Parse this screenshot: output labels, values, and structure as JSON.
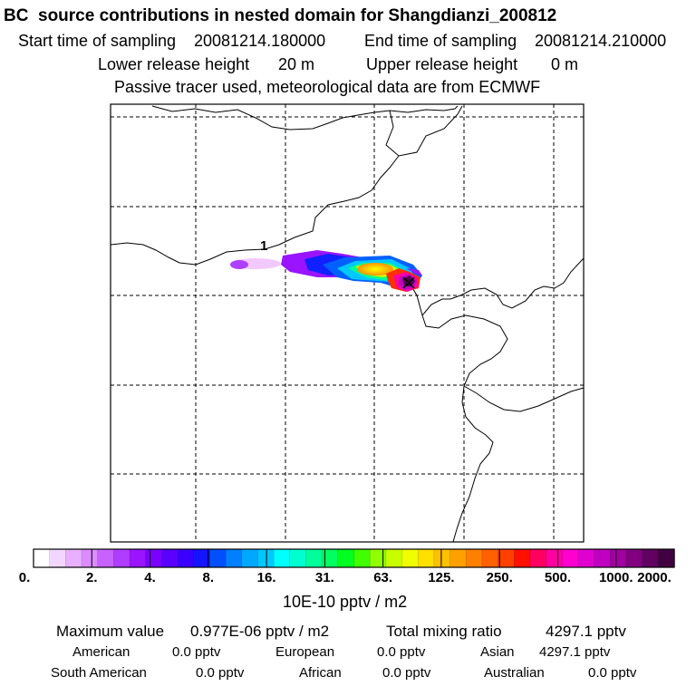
{
  "chart_data": {
    "type": "heatmap",
    "title": "BC  source contributions in nested domain for Shangdianzi_200812",
    "header": {
      "start_label": "Start time of sampling",
      "start_value": "20081214.180000",
      "end_label": "End time of sampling",
      "end_value": "20081214.210000",
      "lower_label": "Lower release height",
      "lower_value": "20 m",
      "upper_label": "Upper release height",
      "upper_value": "0 m",
      "note": "Passive tracer used, meteorological data are from ECMWF"
    },
    "map_label": "1",
    "colorbar": {
      "unit": "10E-10 pptv / m2",
      "tick_labels": [
        "0.",
        "2.",
        "4.",
        "8.",
        "16.",
        "31.",
        "63.",
        "125.",
        "250.",
        "500.",
        "1000.",
        "2000."
      ],
      "tick_values": [
        0,
        2,
        4,
        8,
        16,
        31,
        63,
        125,
        250,
        500,
        1000,
        2000
      ],
      "colors": [
        "#ffffff",
        "#f3d6ff",
        "#e8b0ff",
        "#dc8cff",
        "#c862ff",
        "#b03cff",
        "#9a14ff",
        "#7a00ff",
        "#5a00ff",
        "#3a00ff",
        "#1414ff",
        "#0050ff",
        "#0080ff",
        "#00a8ff",
        "#00c8ff",
        "#00ffff",
        "#00ffd0",
        "#00ff9a",
        "#00ff60",
        "#00ff20",
        "#40ff00",
        "#90ff00",
        "#c8ff00",
        "#f0ff00",
        "#ffe000",
        "#ffc000",
        "#ffa000",
        "#ff8000",
        "#ff6000",
        "#ff4000",
        "#ff1000",
        "#ff0060",
        "#ff00a0",
        "#ff00d0",
        "#e000d0",
        "#c000c0",
        "#a000a0",
        "#800080",
        "#600060",
        "#400040"
      ]
    },
    "summary": {
      "max_label": "Maximum value",
      "max_value": "0.977E-06 pptv / m2",
      "total_label": "Total mixing ratio",
      "total_value": "4297.1 pptv",
      "regions": [
        {
          "name": "American",
          "value": "0.0 pptv"
        },
        {
          "name": "European",
          "value": "0.0 pptv"
        },
        {
          "name": "Asian",
          "value": "4297.1 pptv"
        },
        {
          "name": "South American",
          "value": "0.0 pptv"
        },
        {
          "name": "African",
          "value": "0.0 pptv"
        },
        {
          "name": "Australian",
          "value": "0.0 pptv"
        }
      ]
    }
  }
}
